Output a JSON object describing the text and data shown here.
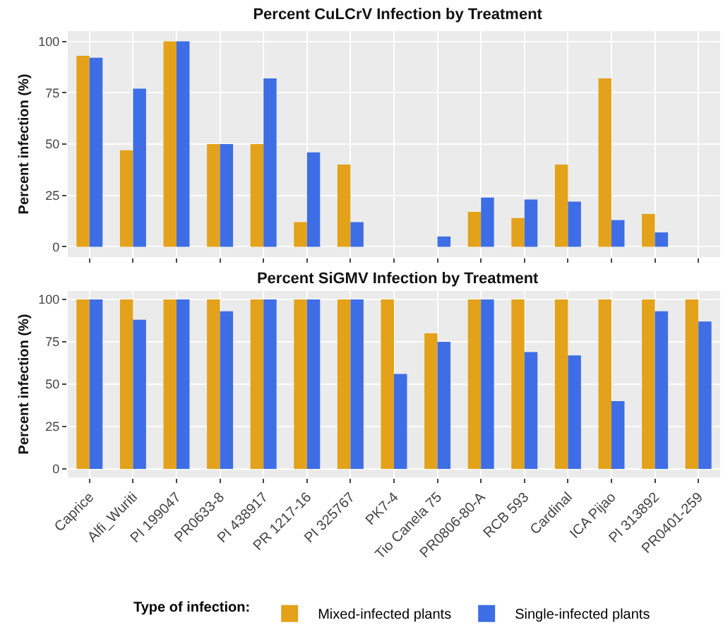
{
  "chart_data": [
    {
      "type": "bar",
      "title": "Percent CuLCrV Infection by Treatment",
      "ylabel": "Percent infection (%)",
      "categories": [
        null,
        null,
        null,
        null,
        null,
        null,
        null,
        null,
        null,
        null,
        null,
        null,
        null,
        null,
        null
      ],
      "series": [
        {
          "color": "#e3a21a",
          "values": [
            93,
            47,
            100,
            50,
            50,
            12,
            40,
            0,
            0,
            17,
            14,
            40,
            82,
            16,
            0
          ]
        },
        {
          "color": "#3e6ee6",
          "values": [
            92,
            77,
            100,
            50,
            82,
            46,
            12,
            0,
            5,
            24,
            23,
            22,
            13,
            7,
            0
          ]
        }
      ],
      "ylim": [
        -5,
        105
      ],
      "yticks": [
        0,
        25,
        50,
        75,
        100
      ],
      "grid": true,
      "tick_labels": "y",
      "legend": false
    },
    {
      "type": "bar",
      "title": "Percent SiGMV Infection by Treatment",
      "ylabel": "Percent infection (%)",
      "legend_title": "Type of infection:",
      "categories": [
        "Caprice",
        "Alfi_Wuriti",
        "PI 199047",
        "PR0633-8",
        "PI 438917",
        "PR 1217-16",
        "PI 325767",
        "PK7-4",
        "Tio Canela 75",
        "PR0806-80-A",
        "RCB 593",
        "Cardinal",
        "ICA Pijao",
        "PI 313892",
        "PR0401-259"
      ],
      "series": [
        {
          "name": "Mixed-infected plants",
          "color": "#e3a21a",
          "values": [
            100,
            100,
            100,
            100,
            100,
            100,
            100,
            100,
            80,
            100,
            100,
            100,
            100,
            100,
            100
          ]
        },
        {
          "name": "Single-infected plants",
          "color": "#3e6ee6",
          "values": [
            100,
            88,
            100,
            93,
            100,
            100,
            100,
            56,
            75,
            100,
            69,
            67,
            40,
            93,
            87
          ]
        }
      ],
      "ylim": [
        -5,
        105
      ],
      "yticks": [
        0,
        25,
        50,
        75,
        100
      ],
      "grid": true,
      "legend": "bottom"
    }
  ]
}
